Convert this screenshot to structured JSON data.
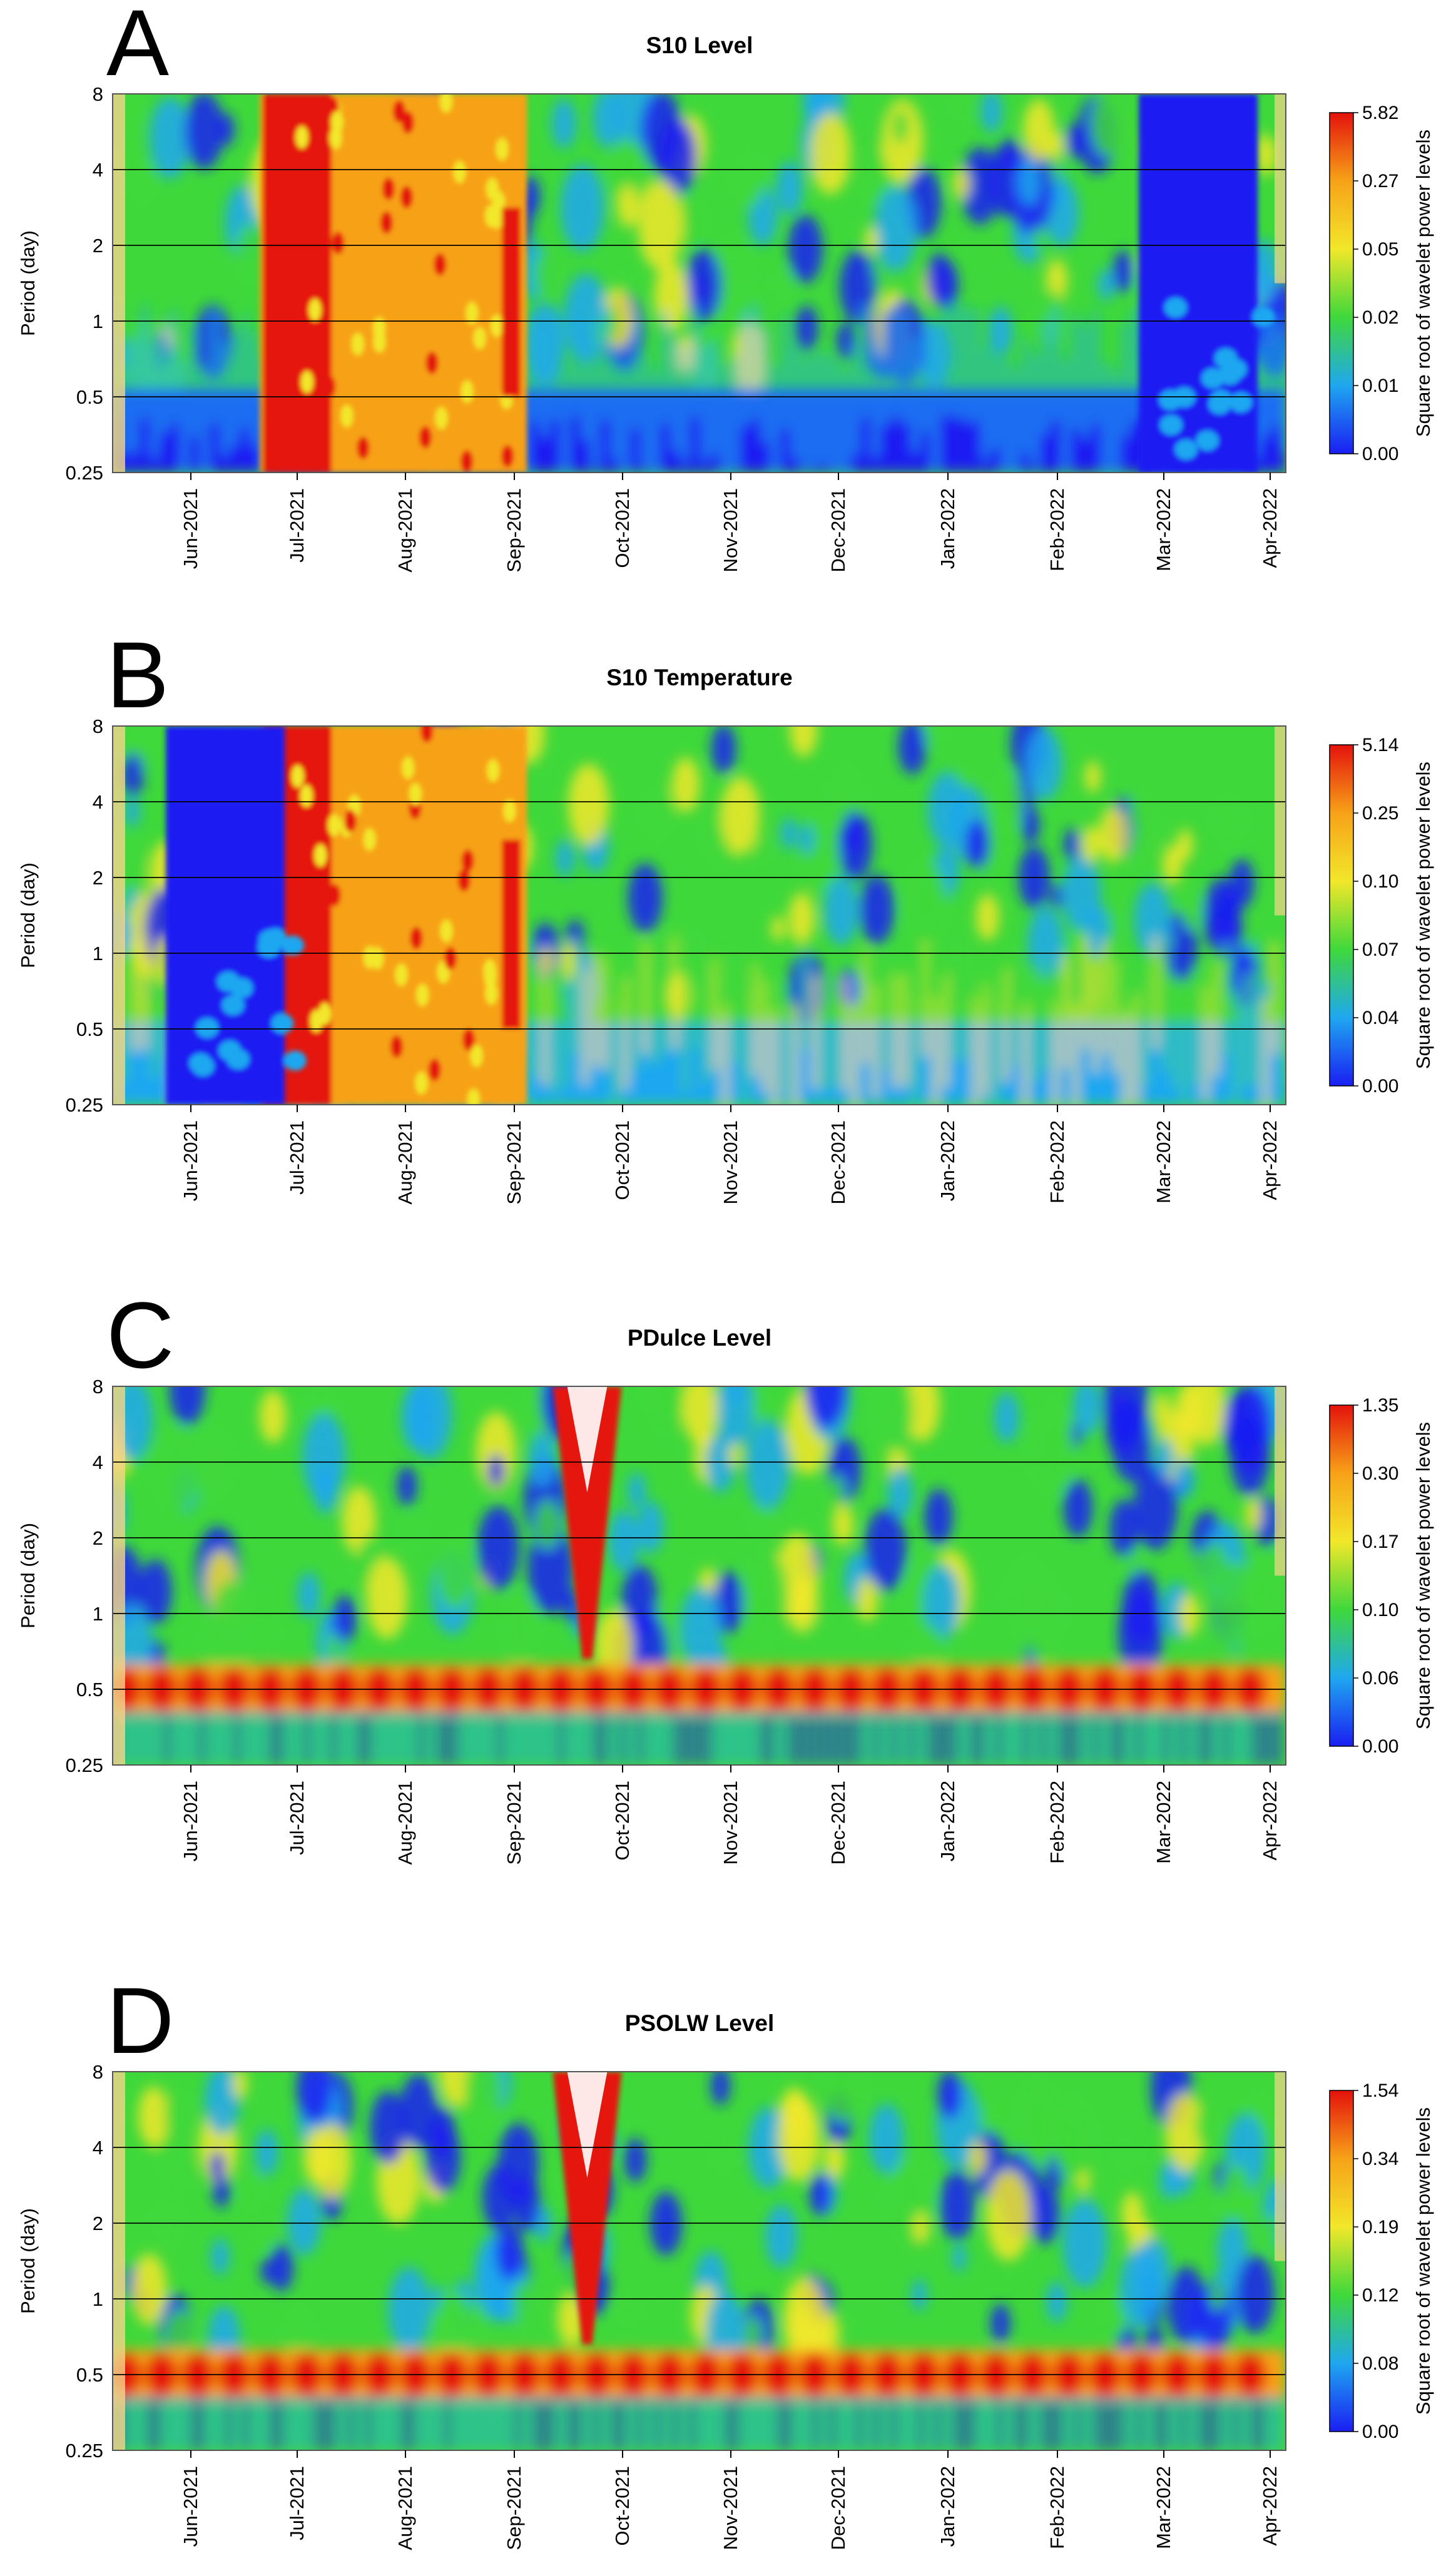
{
  "colors": {
    "high": "#e4120c",
    "mid_high": "#f7a218",
    "mid": "#f2e72a",
    "low_mid": "#3fd83b",
    "low": "#1fa7f0",
    "lowest": "#1a1ef2",
    "grid": "#000000",
    "contour": "#ffffff"
  },
  "chart_data": [
    {
      "type": "heatmap",
      "panel": "A",
      "title": "S10 Level",
      "ylabel": "Period (day)",
      "y_ticks": [
        "8",
        "4",
        "2",
        "1",
        "0.5",
        "0.25"
      ],
      "y_scale": "log2",
      "x_ticks": [
        "Jun-2021",
        "Jul-2021",
        "Aug-2021",
        "Sep-2021",
        "Oct-2021",
        "Nov-2021",
        "Dec-2021",
        "Jan-2022",
        "Feb-2022",
        "Mar-2022",
        "Apr-2022"
      ],
      "colorbar_label": "Square root of wavelet power levels",
      "colorbar_ticks": [
        "5.82",
        "0.27",
        "0.05",
        "0.02",
        "0.01",
        "0.00"
      ],
      "grid": "horizontal lines at each period tick",
      "high_power_windows": [
        [
          "Jul-2021",
          "Sep-2021"
        ]
      ],
      "low_power_windows": [
        [
          "Mar-2022",
          "Apr-2022"
        ]
      ]
    },
    {
      "type": "heatmap",
      "panel": "B",
      "title": "S10 Temperature",
      "ylabel": "Period (day)",
      "y_ticks": [
        "8",
        "4",
        "2",
        "1",
        "0.5",
        "0.25"
      ],
      "y_scale": "log2",
      "x_ticks": [
        "Jun-2021",
        "Jul-2021",
        "Aug-2021",
        "Sep-2021",
        "Oct-2021",
        "Nov-2021",
        "Dec-2021",
        "Jan-2022",
        "Feb-2022",
        "Mar-2022",
        "Apr-2022"
      ],
      "colorbar_label": "Square root of wavelet power levels",
      "colorbar_ticks": [
        "5.14",
        "0.25",
        "0.10",
        "0.07",
        "0.04",
        "0.00"
      ],
      "grid": "horizontal lines at each period tick",
      "high_power_windows": [
        [
          "Jul-2021",
          "Sep-2021"
        ]
      ],
      "low_power_windows": [
        [
          "Jun-2021",
          "Jul-2021"
        ]
      ]
    },
    {
      "type": "heatmap",
      "panel": "C",
      "title": "PDulce Level",
      "ylabel": "Period (day)",
      "y_ticks": [
        "8",
        "4",
        "2",
        "1",
        "0.5",
        "0.25"
      ],
      "y_scale": "log2",
      "x_ticks": [
        "Jun-2021",
        "Jul-2021",
        "Aug-2021",
        "Sep-2021",
        "Oct-2021",
        "Nov-2021",
        "Dec-2021",
        "Jan-2022",
        "Feb-2022",
        "Mar-2022",
        "Apr-2022"
      ],
      "colorbar_label": "Square root of wavelet power levels",
      "colorbar_ticks": [
        "1.35",
        "0.30",
        "0.17",
        "0.10",
        "0.06",
        "0.00"
      ],
      "grid": "horizontal lines at each period tick",
      "semidiurnal_band_period": 0.5,
      "high_power_windows": [
        [
          "Sep-2021",
          "Oct-2021"
        ]
      ]
    },
    {
      "type": "heatmap",
      "panel": "D",
      "title": "PSOLW Level",
      "ylabel": "Period (day)",
      "y_ticks": [
        "8",
        "4",
        "2",
        "1",
        "0.5",
        "0.25"
      ],
      "y_scale": "log2",
      "x_ticks": [
        "Jun-2021",
        "Jul-2021",
        "Aug-2021",
        "Sep-2021",
        "Oct-2021",
        "Nov-2021",
        "Dec-2021",
        "Jan-2022",
        "Feb-2022",
        "Mar-2022",
        "Apr-2022"
      ],
      "colorbar_label": "Square root of wavelet power levels",
      "colorbar_ticks": [
        "1.54",
        "0.34",
        "0.19",
        "0.12",
        "0.08",
        "0.00"
      ],
      "grid": "horizontal lines at each period tick",
      "semidiurnal_band_period": 0.5,
      "high_power_windows": [
        [
          "Sep-2021",
          "Oct-2021"
        ]
      ]
    }
  ]
}
